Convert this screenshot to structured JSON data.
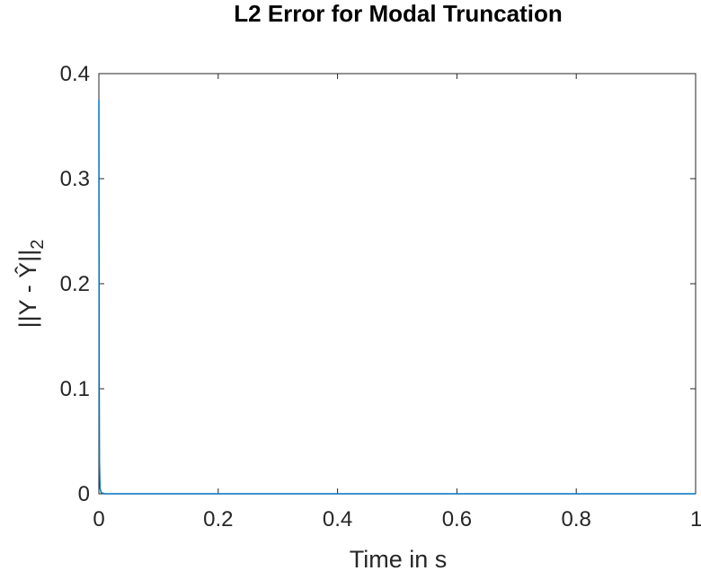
{
  "chart_data": {
    "type": "line",
    "title": "L2 Error for Modal Truncation",
    "xlabel": "Time in s",
    "ylabel_main": "||Y - Ŷ||",
    "ylabel_sub": "2",
    "xlim": [
      0,
      1
    ],
    "ylim": [
      0,
      0.4
    ],
    "xticks": [
      0,
      0.2,
      0.4,
      0.6,
      0.8,
      1
    ],
    "xtick_labels": [
      "0",
      "0.2",
      "0.4",
      "0.6",
      "0.8",
      "1"
    ],
    "yticks": [
      0,
      0.1,
      0.2,
      0.3,
      0.4
    ],
    "ytick_labels": [
      "0",
      "0.1",
      "0.2",
      "0.3",
      "0.4"
    ],
    "grid": false,
    "series": [
      {
        "color": "#0072BD",
        "x": [
          0,
          0.0005,
          0.001,
          0.002,
          0.004,
          0.01,
          0.1,
          0.3,
          0.5,
          0.7,
          0.9,
          1
        ],
        "y": [
          0.375,
          0.12,
          0.03,
          0.005,
          0.001,
          0,
          0,
          0,
          0,
          0,
          0,
          0
        ]
      }
    ]
  }
}
